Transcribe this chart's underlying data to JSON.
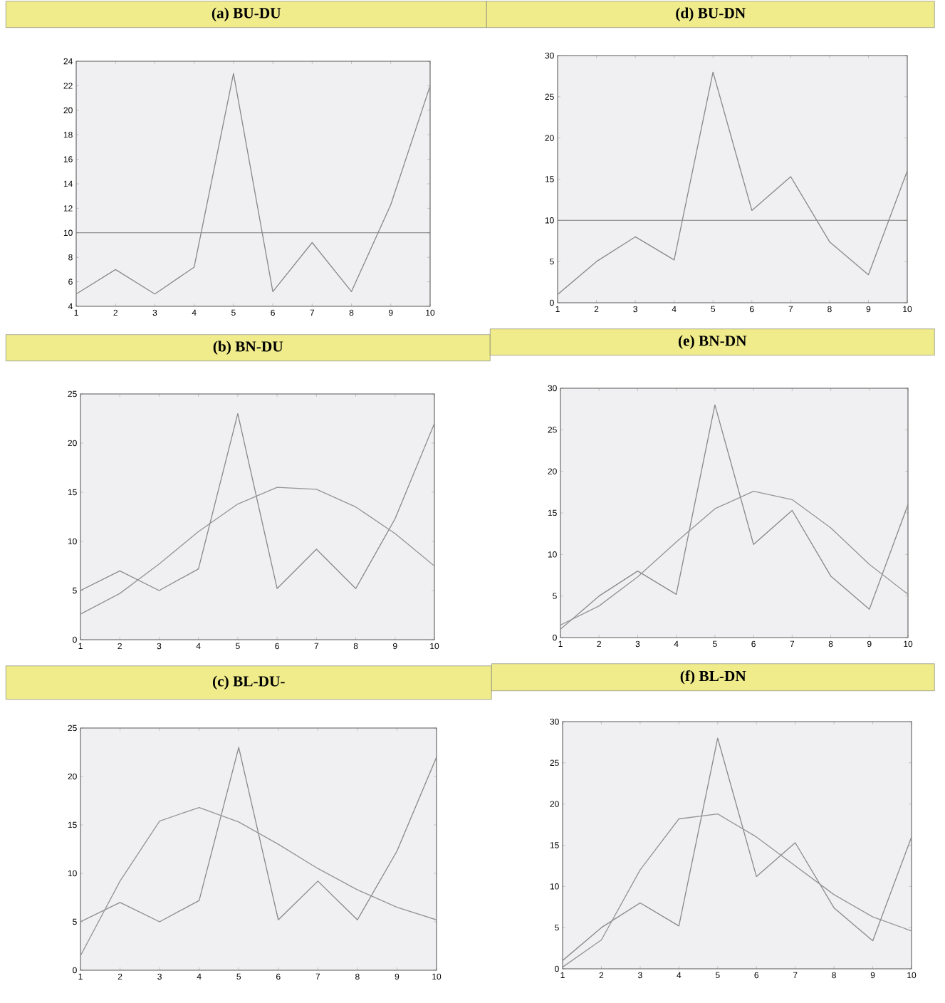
{
  "chart_data": [
    {
      "type": "line",
      "title": "**(a) BU-DU**",
      "x": [
        1,
        2,
        3,
        4,
        5,
        6,
        7,
        8,
        9,
        10
      ],
      "xlim": [
        1,
        10
      ],
      "xticks": [
        1,
        2,
        3,
        4,
        5,
        6,
        7,
        8,
        9,
        10
      ],
      "ylim": [
        4,
        24
      ],
      "yticks": [
        4,
        6,
        8,
        10,
        12,
        14,
        16,
        18,
        20,
        22,
        24
      ],
      "series": [
        {
          "color": "#8a8a8a",
          "values": [
            5,
            7,
            5,
            7.2,
            23,
            5.2,
            9.2,
            5.2,
            12.3,
            22
          ]
        }
      ],
      "ref_lines": [
        {
          "axis": "y",
          "value": 10,
          "color": "#7a7a7a"
        }
      ]
    },
    {
      "type": "line",
      "title": "**(d) BU-DN**",
      "x": [
        1,
        2,
        3,
        4,
        5,
        6,
        7,
        8,
        9,
        10
      ],
      "xlim": [
        1,
        10
      ],
      "xticks": [
        1,
        2,
        3,
        4,
        5,
        6,
        7,
        8,
        9,
        10
      ],
      "ylim": [
        0,
        30
      ],
      "yticks": [
        0,
        5,
        10,
        15,
        20,
        25,
        30
      ],
      "series": [
        {
          "color": "#8a8a8a",
          "values": [
            1,
            5,
            8,
            5.2,
            28,
            11.2,
            15.3,
            7.4,
            3.4,
            16
          ]
        }
      ],
      "ref_lines": [
        {
          "axis": "y",
          "value": 10,
          "color": "#7a7a7a"
        }
      ]
    },
    {
      "type": "line",
      "title": "**(b) BN-DU**",
      "x": [
        1,
        2,
        3,
        4,
        5,
        6,
        7,
        8,
        9,
        10
      ],
      "xlim": [
        1,
        10
      ],
      "xticks": [
        1,
        2,
        3,
        4,
        5,
        6,
        7,
        8,
        9,
        10
      ],
      "ylim": [
        0,
        25
      ],
      "yticks": [
        0,
        5,
        10,
        15,
        20,
        25
      ],
      "series": [
        {
          "color": "#8a8a8a",
          "values": [
            5,
            7,
            5,
            7.2,
            23,
            5.2,
            9.2,
            5.2,
            12.3,
            22
          ]
        },
        {
          "color": "#959595",
          "values": [
            2.6,
            4.7,
            7.7,
            11,
            13.8,
            15.5,
            15.3,
            13.5,
            10.8,
            7.5
          ]
        }
      ]
    },
    {
      "type": "line",
      "title": "**(e) BN-DN**",
      "x": [
        1,
        2,
        3,
        4,
        5,
        6,
        7,
        8,
        9,
        10
      ],
      "xlim": [
        1,
        10
      ],
      "xticks": [
        1,
        2,
        3,
        4,
        5,
        6,
        7,
        8,
        9,
        10
      ],
      "ylim": [
        0,
        30
      ],
      "yticks": [
        0,
        5,
        10,
        15,
        20,
        25,
        30
      ],
      "series": [
        {
          "color": "#8a8a8a",
          "values": [
            1,
            5,
            8,
            5.2,
            28,
            11.2,
            15.3,
            7.4,
            3.4,
            16
          ]
        },
        {
          "color": "#959595",
          "values": [
            1.5,
            3.8,
            7.3,
            11.5,
            15.5,
            17.6,
            16.6,
            13.2,
            8.8,
            5.2
          ]
        }
      ]
    },
    {
      "type": "line",
      "title": "**(c) BL-DU-**",
      "x": [
        1,
        2,
        3,
        4,
        5,
        6,
        7,
        8,
        9,
        10
      ],
      "xlim": [
        1,
        10
      ],
      "xticks": [
        1,
        2,
        3,
        4,
        5,
        6,
        7,
        8,
        9,
        10
      ],
      "ylim": [
        0,
        25
      ],
      "yticks": [
        0,
        5,
        10,
        15,
        20,
        25
      ],
      "series": [
        {
          "color": "#8a8a8a",
          "values": [
            5,
            7,
            5,
            7.2,
            23,
            5.2,
            9.2,
            5.2,
            12.3,
            22
          ]
        },
        {
          "color": "#959595",
          "values": [
            1.5,
            9.2,
            15.4,
            16.8,
            15.3,
            13,
            10.5,
            8.3,
            6.5,
            5.2
          ]
        }
      ]
    },
    {
      "type": "line",
      "title": "**(f) BL-DN**",
      "x": [
        1,
        2,
        3,
        4,
        5,
        6,
        7,
        8,
        9,
        10
      ],
      "xlim": [
        1,
        10
      ],
      "xticks": [
        1,
        2,
        3,
        4,
        5,
        6,
        7,
        8,
        9,
        10
      ],
      "ylim": [
        0,
        30
      ],
      "yticks": [
        0,
        5,
        10,
        15,
        20,
        25,
        30
      ],
      "series": [
        {
          "color": "#8a8a8a",
          "values": [
            1,
            5,
            8,
            5.2,
            28,
            11.2,
            15.3,
            7.4,
            3.4,
            16
          ]
        },
        {
          "color": "#959595",
          "values": [
            0.2,
            3.5,
            12,
            18.2,
            18.8,
            16,
            12.5,
            9,
            6.3,
            4.6
          ]
        }
      ]
    }
  ]
}
